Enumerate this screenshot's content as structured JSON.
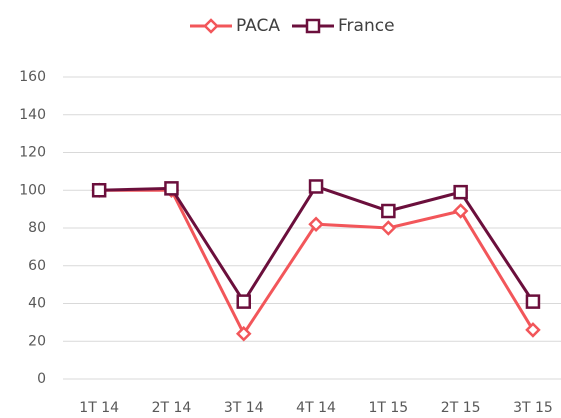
{
  "chart_data": {
    "type": "line",
    "categories": [
      "1T 14",
      "2T 14",
      "3T 14",
      "4T 14",
      "1T 15",
      "2T 15",
      "3T 15"
    ],
    "series": [
      {
        "name": "PACA",
        "color": "#f2565a",
        "marker": "diamond",
        "values": [
          100,
          100,
          24,
          82,
          80,
          89,
          26
        ]
      },
      {
        "name": "France",
        "color": "#6b0f3c",
        "marker": "square",
        "values": [
          100,
          101,
          41,
          102,
          89,
          99,
          41
        ]
      }
    ],
    "ylim": [
      0,
      160
    ],
    "yticks": [
      0,
      20,
      40,
      60,
      80,
      100,
      120,
      140,
      160
    ],
    "grid": true,
    "legend": "top"
  }
}
